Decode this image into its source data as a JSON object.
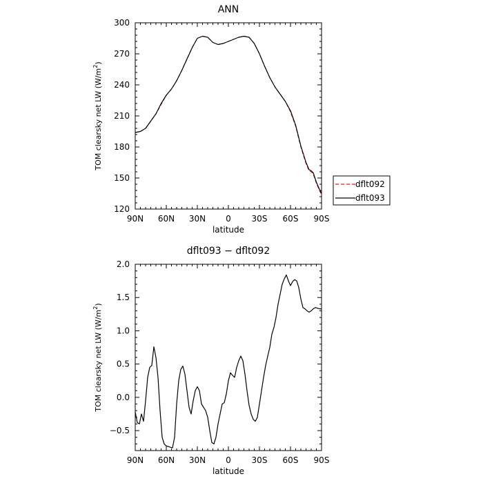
{
  "chart_data": [
    {
      "type": "line",
      "title": "ANN",
      "xlabel": "latitude",
      "ylabel": "TOM clearsky net LW (W/m",
      "ylabel_sup": "2",
      "ylabel_end": ")",
      "xlim": [
        90,
        -90
      ],
      "ylim": [
        120,
        300
      ],
      "xticks": [
        90,
        60,
        30,
        0,
        -30,
        -60,
        -90
      ],
      "xtick_labels": [
        "90N",
        "60N",
        "30N",
        "0",
        "30S",
        "60S",
        "90S"
      ],
      "yticks": [
        120,
        150,
        180,
        210,
        240,
        270,
        300
      ],
      "ytick_labels": [
        "120",
        "150",
        "180",
        "210",
        "240",
        "270",
        "300"
      ],
      "legend": {
        "position": "right",
        "entries": [
          "dflt092",
          "dflt093"
        ]
      },
      "series": [
        {
          "name": "dflt092",
          "color": "#d62020",
          "dash": "5,3",
          "x": [
            90,
            85,
            80,
            75,
            70,
            65,
            60,
            55,
            50,
            45,
            40,
            35,
            30,
            25,
            20,
            15,
            10,
            5,
            0,
            -5,
            -10,
            -15,
            -20,
            -25,
            -30,
            -35,
            -40,
            -45,
            -50,
            -55,
            -60,
            -65,
            -70,
            -75,
            -78,
            -80,
            -82,
            -85,
            -88,
            -90
          ],
          "y": [
            194,
            195,
            198,
            205,
            212,
            221,
            230,
            236,
            244,
            254,
            265,
            276,
            285,
            287,
            286,
            281,
            279,
            280,
            282,
            284,
            286,
            287,
            286,
            280,
            270,
            258,
            247,
            238,
            231,
            224,
            214,
            200,
            180,
            164,
            157,
            156,
            154,
            145,
            138,
            134
          ]
        },
        {
          "name": "dflt093",
          "color": "#000000",
          "dash": "",
          "x": [
            90,
            85,
            80,
            75,
            70,
            65,
            60,
            55,
            50,
            45,
            40,
            35,
            30,
            25,
            20,
            15,
            10,
            5,
            0,
            -5,
            -10,
            -15,
            -20,
            -25,
            -30,
            -35,
            -40,
            -45,
            -50,
            -55,
            -60,
            -65,
            -70,
            -75,
            -78,
            -80,
            -82,
            -85,
            -88,
            -90
          ],
          "y": [
            194,
            195,
            198,
            205,
            212,
            222,
            230,
            236,
            244,
            254,
            265,
            276,
            285,
            287,
            286,
            281,
            279,
            280,
            282,
            284,
            286,
            287,
            286,
            280,
            270,
            258,
            247,
            238,
            231,
            224,
            215,
            201,
            181,
            165,
            158,
            157,
            155,
            146,
            139,
            135
          ]
        }
      ]
    },
    {
      "type": "line",
      "title": "dflt093 − dflt092",
      "xlabel": "latitude",
      "ylabel": "TOM clearsky net LW (W/m",
      "ylabel_sup": "2",
      "ylabel_end": ")",
      "xlim": [
        90,
        -90
      ],
      "ylim": [
        -0.8,
        2.0
      ],
      "xticks": [
        90,
        60,
        30,
        0,
        -30,
        -60,
        -90
      ],
      "xtick_labels": [
        "90N",
        "60N",
        "30N",
        "0",
        "30S",
        "60S",
        "90S"
      ],
      "yticks": [
        -0.5,
        0,
        0.5,
        1.0,
        1.5,
        2.0
      ],
      "ytick_labels": [
        "−0.5",
        "0.0",
        "0.5",
        "1.0",
        "1.5",
        "2.0"
      ],
      "series": [
        {
          "name": "dflt093 − dflt092",
          "color": "#000000",
          "dash": "",
          "x": [
            90,
            88,
            86,
            84,
            82,
            80,
            78,
            76,
            74,
            72,
            70,
            68,
            66,
            64,
            62,
            60,
            58,
            56,
            54,
            52,
            50,
            48,
            46,
            44,
            42,
            40,
            38,
            36,
            34,
            32,
            30,
            28,
            26,
            24,
            22,
            20,
            18,
            16,
            14,
            12,
            10,
            8,
            6,
            4,
            2,
            0,
            -2,
            -4,
            -6,
            -8,
            -10,
            -12,
            -14,
            -16,
            -18,
            -20,
            -22,
            -24,
            -26,
            -28,
            -30,
            -32,
            -34,
            -36,
            -38,
            -40,
            -42,
            -44,
            -46,
            -48,
            -50,
            -52,
            -54,
            -56,
            -58,
            -60,
            -62,
            -64,
            -66,
            -68,
            -70,
            -72,
            -74,
            -76,
            -78,
            -80,
            -82,
            -84,
            -86,
            -88,
            -90
          ],
          "y": [
            -0.22,
            -0.38,
            -0.4,
            -0.25,
            -0.36,
            -0.05,
            0.3,
            0.45,
            0.48,
            0.76,
            0.6,
            0.3,
            -0.2,
            -0.6,
            -0.7,
            -0.73,
            -0.74,
            -0.75,
            -0.76,
            -0.6,
            -0.1,
            0.25,
            0.42,
            0.47,
            0.35,
            0.1,
            -0.15,
            -0.25,
            -0.05,
            0.1,
            0.16,
            0.1,
            -0.1,
            -0.15,
            -0.2,
            -0.3,
            -0.5,
            -0.68,
            -0.7,
            -0.6,
            -0.4,
            -0.25,
            -0.1,
            -0.08,
            0.05,
            0.25,
            0.37,
            0.33,
            0.3,
            0.45,
            0.55,
            0.62,
            0.55,
            0.35,
            0.1,
            -0.12,
            -0.25,
            -0.33,
            -0.36,
            -0.3,
            -0.1,
            0.1,
            0.3,
            0.48,
            0.62,
            0.75,
            0.95,
            1.05,
            1.2,
            1.4,
            1.55,
            1.7,
            1.78,
            1.84,
            1.75,
            1.68,
            1.74,
            1.77,
            1.75,
            1.65,
            1.48,
            1.35,
            1.33,
            1.3,
            1.28,
            1.3,
            1.33,
            1.35,
            1.34,
            1.33,
            1.33
          ]
        }
      ]
    }
  ]
}
